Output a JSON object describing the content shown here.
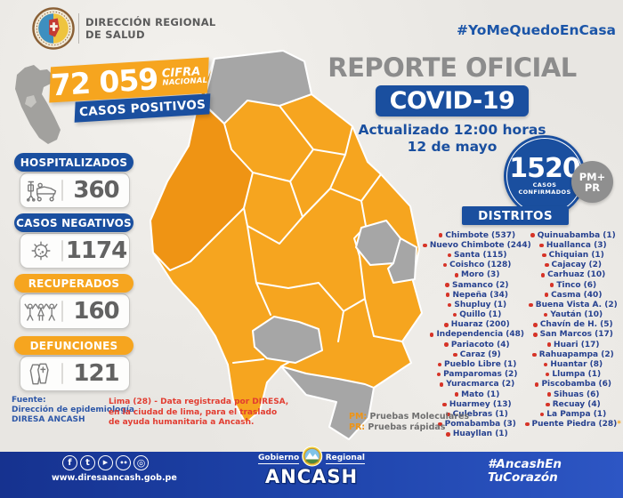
{
  "header": {
    "org_line1": "DIRECCIÓN REGIONAL",
    "org_line2": "DE SALUD",
    "hashtag": "#YoMeQuedoEnCasa"
  },
  "national": {
    "figure": "72 059",
    "figure_label_line1": "CIFRA",
    "figure_label_line2": "NACIONAL",
    "ribbon": "CASOS POSITIVOS"
  },
  "stats": [
    {
      "label": "HOSPITALIZADOS",
      "value": "360",
      "icon": "hospital-bed"
    },
    {
      "label": "CASOS NEGATIVOS",
      "value": "1174",
      "icon": "virus"
    },
    {
      "label": "RECUPERADOS",
      "value": "160",
      "icon": "people"
    },
    {
      "label": "DEFUNCIONES",
      "value": "121",
      "icon": "coffin"
    }
  ],
  "report": {
    "title": "REPORTE OFICIAL",
    "subtitle": "COVID-19",
    "updated": "Actualizado 12:00 horas",
    "date": "12 de mayo",
    "confirmed_value": "1520",
    "confirmed_label_line1": "CASOS",
    "confirmed_label_line2": "CONFIRMADOS",
    "badge_line1": "PM+",
    "badge_line2": "PR"
  },
  "districts": {
    "title": "DISTRITOS",
    "col_left": [
      "Chimbote (537)",
      "Nuevo Chimbote (244)",
      "Santa (115)",
      "Coishco (128)",
      "Moro (3)",
      "Samanco (2)",
      "Nepeña (34)",
      "Shupluy (1)",
      "Quillo (1)",
      "Huaraz (200)",
      "Independencia (48)",
      "Pariacoto (4)",
      "Caraz (9)",
      "Pueblo Libre (1)",
      "Pamparomas (2)",
      "Yuracmarca (2)",
      "Mato (1)",
      "Huarmey (13)",
      "Culebras (1)",
      "Pomabamba (3)",
      "Huayllan (1)"
    ],
    "col_right": [
      "Quinuabamba (1)",
      "Huallanca (3)",
      "Chiquian (1)",
      "Cajacay (2)",
      "Carhuaz (10)",
      "Tinco (6)",
      "Casma (40)",
      "Buena Vista A. (2)",
      "Yaután (10)",
      "Chavín de H. (5)",
      "San Marcos (17)",
      "Huari (17)",
      "Rahuapampa (2)",
      "Huantar (8)",
      "Llumpa (1)",
      "Piscobamba (6)",
      "Sihuas (6)",
      "Recuay (4)",
      "La Pampa (1)",
      "Puente Piedra (28)*"
    ]
  },
  "legend": {
    "pm_abbr": "PM:",
    "pm_text": " Pruebas Moleculares",
    "pr_abbr": "PR:",
    "pr_text": " Pruebas rápidas"
  },
  "source": {
    "line1": "Fuente:",
    "line2": "Dirección de epidemiología",
    "line3": "DIRESA  ANCASH"
  },
  "note": {
    "line1": "Lima (28) - Data registrada por DIRESA,",
    "line2": "en la ciudad de lima, para el traslado",
    "line3": "de ayuda humanitaria a Ancash."
  },
  "footer": {
    "website": "www.diresaancash.gob.pe",
    "gov_word1": "Gobierno",
    "gov_word2": "Regional",
    "gov_name": "ANCASH",
    "hashtag_line1": "#AncashEn",
    "hashtag_line2": "TuCorazón",
    "social": [
      "facebook",
      "twitter",
      "youtube",
      "flickr",
      "instagram"
    ],
    "facebook_glyph": "f",
    "twitter_glyph": "t",
    "youtube_glyph": "▶",
    "flickr_glyph": "••",
    "instagram_glyph": "◎"
  },
  "colors": {
    "accent_orange": "#F6A51F",
    "accent_orange_dark": "#EF9414",
    "brand_blue": "#1A4F9F",
    "footer_blue": "#1D42A8",
    "map_gray": "#A6A6A6",
    "bullet_red": "#D63428",
    "note_red": "#E23C30",
    "district_text_navy": "#26418F",
    "title_gray": "#8C8C8C"
  }
}
